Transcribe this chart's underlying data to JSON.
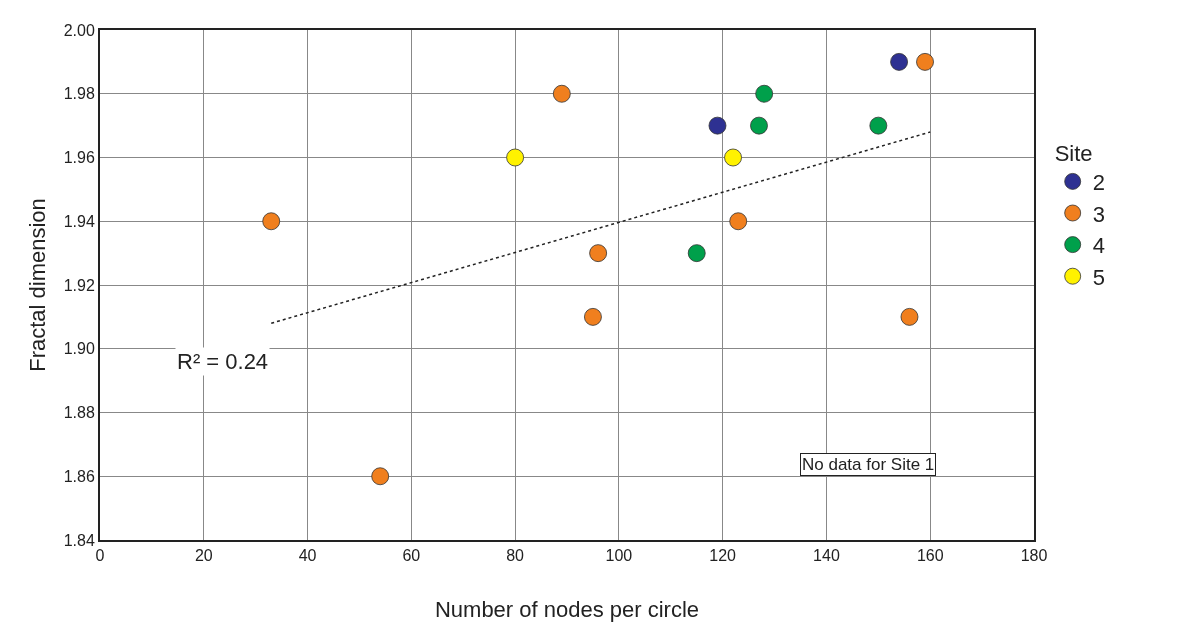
{
  "chart_data": {
    "type": "scatter",
    "xlabel": "Number of nodes per circle",
    "ylabel": "Fractal dimension",
    "legend_title": "Site",
    "legend": "right",
    "grid": true,
    "xlim": [
      0,
      180
    ],
    "xticks": [
      0,
      20,
      40,
      60,
      80,
      100,
      120,
      140,
      160,
      180
    ],
    "ylim": [
      1.84,
      2.0
    ],
    "yticks": [
      {
        "value": 1.84,
        "label": "1.84"
      },
      {
        "value": 1.86,
        "label": "1.86"
      },
      {
        "value": 1.88,
        "label": "1.88"
      },
      {
        "value": 1.9,
        "label": "1.90"
      },
      {
        "value": 1.92,
        "label": "1.92"
      },
      {
        "value": 1.94,
        "label": "1.94"
      },
      {
        "value": 1.96,
        "label": "1.96"
      },
      {
        "value": 1.98,
        "label": "1.98"
      },
      {
        "value": 2.0,
        "label": "2.00"
      }
    ],
    "series": [
      {
        "name": "2",
        "marker": "circle",
        "color": "#2e3192",
        "x": [
          154,
          119
        ],
        "values": [
          1.99,
          1.97
        ]
      },
      {
        "name": "3",
        "marker": "circle",
        "color": "#f07f1e",
        "x": [
          159,
          89,
          33,
          96,
          95,
          123,
          156,
          54
        ],
        "values": [
          1.99,
          1.98,
          1.94,
          1.93,
          1.91,
          1.94,
          1.91,
          1.86
        ]
      },
      {
        "name": "4",
        "marker": "circle",
        "color": "#00a04b",
        "x": [
          128,
          127,
          150,
          115
        ],
        "values": [
          1.98,
          1.97,
          1.97,
          1.93
        ]
      },
      {
        "name": "5",
        "marker": "circle",
        "color": "#fff200",
        "x": [
          80,
          122
        ],
        "values": [
          1.96,
          1.96
        ]
      },
      {
        "type": "line",
        "color": "#222222",
        "line_style": "dotted",
        "x": [
          33,
          160
        ],
        "values": [
          1.908,
          1.968
        ]
      }
    ],
    "annotations": [
      "R² = 0.24",
      "No data for Site 1"
    ]
  }
}
